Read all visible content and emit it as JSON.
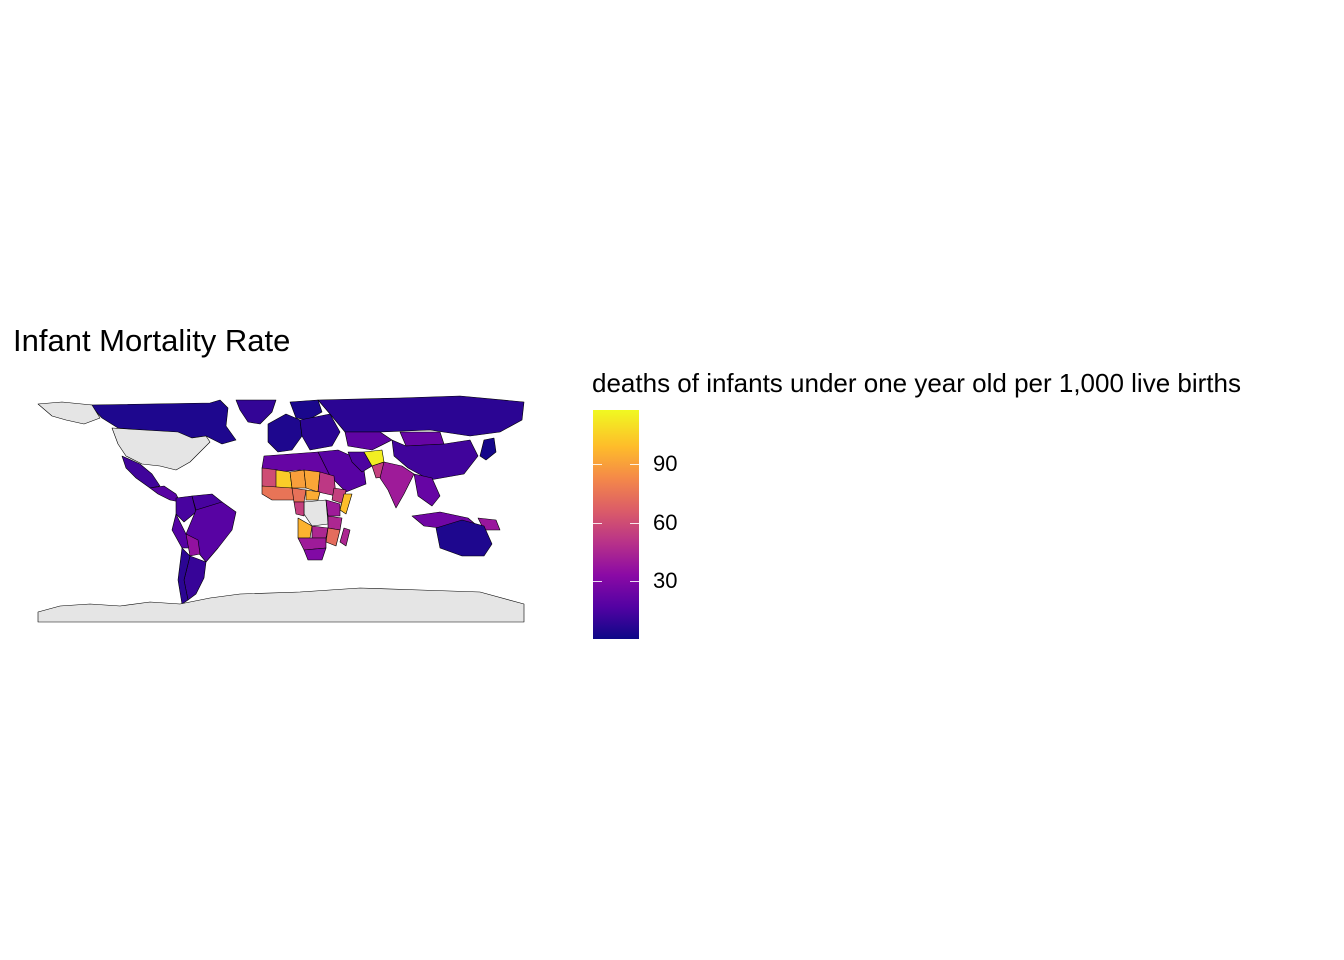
{
  "title": "Infant Mortality Rate",
  "legend": {
    "title": "deaths of infants under one year old per 1,000 live births",
    "range": [
      0,
      118
    ],
    "ticks": [
      {
        "value": 30,
        "label": "30"
      },
      {
        "value": 60,
        "label": "60"
      },
      {
        "value": 90,
        "label": "90"
      }
    ],
    "palette": "plasma",
    "na_color": "#e5e5e5"
  },
  "colors": {
    "border": "#000000",
    "missing": "#e5e5e5",
    "low": "#0d0887",
    "high": "#f0f921"
  },
  "regions": [
    {
      "name": "Canada",
      "value": 4
    },
    {
      "name": "United States",
      "value": null
    },
    {
      "name": "Alaska",
      "value": null
    },
    {
      "name": "Greenland",
      "value": 9
    },
    {
      "name": "Mexico",
      "value": 12
    },
    {
      "name": "Central America",
      "value": 18
    },
    {
      "name": "Colombia",
      "value": 14
    },
    {
      "name": "Venezuela",
      "value": 14
    },
    {
      "name": "Brazil",
      "value": 18
    },
    {
      "name": "Peru",
      "value": 17
    },
    {
      "name": "Bolivia",
      "value": 36
    },
    {
      "name": "Argentina",
      "value": 10
    },
    {
      "name": "Chile",
      "value": 7
    },
    {
      "name": "Western Europe",
      "value": 4
    },
    {
      "name": "Scandinavia",
      "value": 3
    },
    {
      "name": "Eastern Europe",
      "value": 7
    },
    {
      "name": "Russia",
      "value": 7
    },
    {
      "name": "Kazakhstan",
      "value": 20
    },
    {
      "name": "Mongolia",
      "value": 22
    },
    {
      "name": "China",
      "value": 12
    },
    {
      "name": "Middle East",
      "value": 18
    },
    {
      "name": "Iran",
      "value": 15
    },
    {
      "name": "Afghanistan",
      "value": 115
    },
    {
      "name": "Pakistan",
      "value": 55
    },
    {
      "name": "India",
      "value": 40
    },
    {
      "name": "Southeast Asia",
      "value": 22
    },
    {
      "name": "Indonesia",
      "value": 25
    },
    {
      "name": "Papua New Guinea",
      "value": 38
    },
    {
      "name": "Japan",
      "value": 2
    },
    {
      "name": "Australia",
      "value": 4
    },
    {
      "name": "North Africa",
      "value": 22
    },
    {
      "name": "Mauritania",
      "value": 60
    },
    {
      "name": "Mali",
      "value": 104
    },
    {
      "name": "Niger",
      "value": 90
    },
    {
      "name": "Chad",
      "value": 92
    },
    {
      "name": "Sudan",
      "value": 52
    },
    {
      "name": "Ethiopia",
      "value": 55
    },
    {
      "name": "Somalia",
      "value": 100
    },
    {
      "name": "West Africa",
      "value": 75
    },
    {
      "name": "Nigeria",
      "value": 74
    },
    {
      "name": "Central African Republic",
      "value": 94
    },
    {
      "name": "Congo DRC",
      "value": null
    },
    {
      "name": "Cameroon / Gabon",
      "value": 55
    },
    {
      "name": "East Africa",
      "value": 40
    },
    {
      "name": "Tanzania",
      "value": 45
    },
    {
      "name": "Angola",
      "value": 96
    },
    {
      "name": "Zambia",
      "value": 45
    },
    {
      "name": "Mozambique",
      "value": 72
    },
    {
      "name": "Southern Africa",
      "value": 40
    },
    {
      "name": "South Africa",
      "value": 30
    },
    {
      "name": "Madagascar",
      "value": 45
    },
    {
      "name": "Antarctica",
      "value": null
    }
  ]
}
